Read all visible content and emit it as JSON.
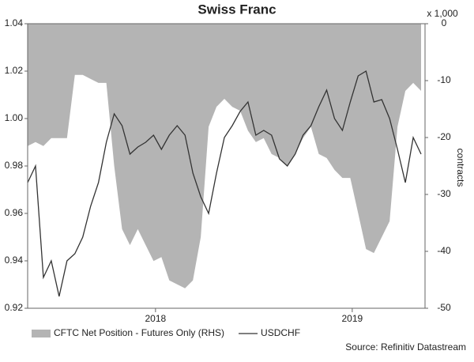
{
  "chart_data": {
    "type": "combo",
    "title": "Swiss Franc",
    "y2_unit": "x 1,000",
    "y2label": "contracts",
    "source": "Source: Refinitiv Datastream",
    "x": [
      2017.35,
      2017.39,
      2017.43,
      2017.47,
      2017.51,
      2017.55,
      2017.59,
      2017.63,
      2017.67,
      2017.71,
      2017.75,
      2017.79,
      2017.83,
      2017.87,
      2017.91,
      2017.95,
      2017.99,
      2018.03,
      2018.07,
      2018.11,
      2018.15,
      2018.19,
      2018.23,
      2018.27,
      2018.31,
      2018.35,
      2018.39,
      2018.43,
      2018.47,
      2018.51,
      2018.55,
      2018.59,
      2018.63,
      2018.67,
      2018.71,
      2018.75,
      2018.79,
      2018.83,
      2018.87,
      2018.91,
      2018.95,
      2018.99,
      2019.03,
      2019.07,
      2019.11,
      2019.15,
      2019.19,
      2019.23,
      2019.27,
      2019.31,
      2019.35
    ],
    "xlim": [
      2017.35,
      2019.37
    ],
    "xticks": [
      2018,
      2019
    ],
    "ylim": [
      0.92,
      1.04
    ],
    "yticks": [
      0.92,
      0.94,
      0.96,
      0.98,
      {
        "value": 1,
        "label": "1.00"
      },
      1.02,
      1.04
    ],
    "y2lim": [
      -50,
      0
    ],
    "y2ticks": [
      -50,
      -40,
      -30,
      -20,
      -10,
      0
    ],
    "series": [
      {
        "name": "CFTC Net Position - Futures Only (RHS)",
        "type": "area",
        "axis": "y2",
        "color": "#b4b4b4",
        "values": [
          -21.5,
          -20.8,
          -21.5,
          -20.1,
          -20.1,
          -20.1,
          -9.0,
          -9.0,
          -9.7,
          -10.4,
          -10.4,
          -25,
          -36.1,
          -38.9,
          -36.1,
          -38.9,
          -41.7,
          -41,
          -45.1,
          -45.8,
          -46.5,
          -45.1,
          -37.5,
          -18.1,
          -14.6,
          -13.2,
          -14.6,
          -15.3,
          -18.8,
          -20.8,
          -20.1,
          -22.9,
          -23.6,
          -25,
          -22.9,
          -20.1,
          -18.1,
          -22.9,
          -23.6,
          -25.7,
          -27.1,
          -27.1,
          -33.3,
          -39.6,
          -40.3,
          -37.5,
          -34.7,
          -18.1,
          -11.8,
          -10.4,
          -11.8
        ]
      },
      {
        "name": "USDCHF",
        "type": "line",
        "axis": "y",
        "color": "#333333",
        "values": [
          0.973,
          0.98,
          0.933,
          0.94,
          0.925,
          0.94,
          0.943,
          0.95,
          0.963,
          0.973,
          0.99,
          1.002,
          0.997,
          0.985,
          0.988,
          0.99,
          0.993,
          0.987,
          0.993,
          0.997,
          0.993,
          0.977,
          0.967,
          0.96,
          0.977,
          0.992,
          0.997,
          1.003,
          1.007,
          0.993,
          0.995,
          0.993,
          0.983,
          0.98,
          0.985,
          0.993,
          0.997,
          1.005,
          1.012,
          1.0,
          0.995,
          1.007,
          1.018,
          1.02,
          1.007,
          1.008,
          1.0,
          0.987,
          0.973,
          0.992,
          0.985
        ]
      }
    ]
  }
}
